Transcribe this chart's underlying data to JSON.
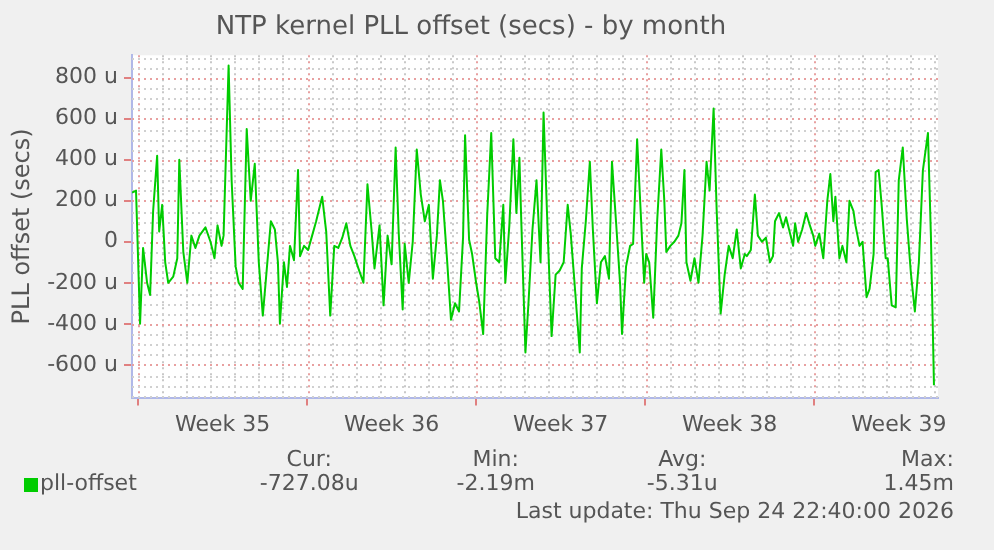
{
  "chart_data": {
    "type": "line",
    "title": "NTP kernel PLL offset (secs) - by month",
    "ylabel": "PLL offset (secs)",
    "xlim": [
      "2026-08-23T18:00",
      "2026-09-26T03:00"
    ],
    "xticks": [
      {
        "value": "2026-08-24T00:00",
        "label": null
      },
      {
        "value": "2026-08-27T12:00",
        "label": "Week 35"
      },
      {
        "value": "2026-08-31T00:00",
        "label": null
      },
      {
        "value": "2026-09-03T12:00",
        "label": "Week 36"
      },
      {
        "value": "2026-09-07T00:00",
        "label": null
      },
      {
        "value": "2026-09-10T12:00",
        "label": "Week 37"
      },
      {
        "value": "2026-09-14T00:00",
        "label": null
      },
      {
        "value": "2026-09-17T12:00",
        "label": "Week 38"
      },
      {
        "value": "2026-09-21T00:00",
        "label": null
      },
      {
        "value": "2026-09-24T12:00",
        "label": "Week 39"
      }
    ],
    "ylim": [
      -760,
      910
    ],
    "yticks": [
      {
        "value": -600,
        "label": "-600 u"
      },
      {
        "value": -400,
        "label": "-400 u"
      },
      {
        "value": -200,
        "label": "-200 u"
      },
      0,
      {
        "value": 200,
        "label": "200 u"
      },
      {
        "value": 400,
        "label": "400 u"
      },
      {
        "value": 600,
        "label": "600 u"
      },
      {
        "value": 800,
        "label": "800 u"
      }
    ],
    "grid": true,
    "legend": "bottom",
    "marker": "none",
    "line_style": "solid",
    "annotations": [
      "Cur:",
      "-727.08u",
      "Min:",
      "-2.19m",
      "Avg:",
      "-5.31u",
      "Max:",
      "1.45m",
      "Last update: Thu Sep 24 22:40:00 2026"
    ],
    "x": [
      "2026-08-23T18:00",
      "2026-08-23T22:00",
      "2026-08-24T02:00",
      "2026-08-24T05:00",
      "2026-08-24T09:00",
      "2026-08-24T12:00",
      "2026-08-24T15:00",
      "2026-08-24T19:00",
      "2026-08-24T21:00",
      "2026-08-25T00:00",
      "2026-08-25T03:00",
      "2026-08-25T06:00",
      "2026-08-25T11:00",
      "2026-08-25T15:00",
      "2026-08-25T17:00",
      "2026-08-25T21:00",
      "2026-08-26T01:00",
      "2026-08-26T05:00",
      "2026-08-26T09:00",
      "2026-08-26T13:00",
      "2026-08-26T19:00",
      "2026-08-27T00:00",
      "2026-08-27T04:00",
      "2026-08-27T07:00",
      "2026-08-27T11:00",
      "2026-08-27T13:00",
      "2026-08-27T18:00",
      "2026-08-27T21:00",
      "2026-08-28T01:00",
      "2026-08-28T04:00",
      "2026-08-28T08:00",
      "2026-08-28T12:00",
      "2026-08-28T16:00",
      "2026-08-28T20:00",
      "2026-08-29T00:00",
      "2026-08-29T04:00",
      "2026-08-29T08:00",
      "2026-08-29T12:00",
      "2026-08-29T16:00",
      "2026-08-29T19:00",
      "2026-08-29T21:00",
      "2026-08-30T01:00",
      "2026-08-30T04:00",
      "2026-08-30T07:00",
      "2026-08-30T11:00",
      "2026-08-30T15:00",
      "2026-08-30T17:00",
      "2026-08-30T21:00",
      "2026-08-31T01:00",
      "2026-08-31T05:00",
      "2026-08-31T09:00",
      "2026-08-31T15:00",
      "2026-08-31T19:00",
      "2026-08-31T23:00",
      "2026-09-01T03:00",
      "2026-09-01T07:00",
      "2026-09-01T11:00",
      "2026-09-01T15:00",
      "2026-09-01T19:00",
      "2026-09-01T23:00",
      "2026-09-02T03:00",
      "2026-09-02T08:00",
      "2026-09-02T12:00",
      "2026-09-02T16:00",
      "2026-09-02T19:00",
      "2026-09-03T00:00",
      "2026-09-03T04:00",
      "2026-09-03T08:00",
      "2026-09-03T12:00",
      "2026-09-03T16:00",
      "2026-09-03T19:00",
      "2026-09-03T23:00",
      "2026-09-04T01:00",
      "2026-09-04T05:00",
      "2026-09-04T09:00",
      "2026-09-04T13:00",
      "2026-09-04T17:00",
      "2026-09-04T21:00",
      "2026-09-05T01:00",
      "2026-09-05T05:00",
      "2026-09-05T09:00",
      "2026-09-05T12:00",
      "2026-09-05T15:00",
      "2026-09-05T19:00",
      "2026-09-05T23:00",
      "2026-09-06T03:00",
      "2026-09-06T07:00",
      "2026-09-06T11:00",
      "2026-09-06T13:00",
      "2026-09-06T17:00",
      "2026-09-06T20:00",
      "2026-09-07T00:00",
      "2026-09-07T03:00",
      "2026-09-07T07:00",
      "2026-09-07T11:00",
      "2026-09-07T15:00",
      "2026-09-07T19:00",
      "2026-09-07T23:00",
      "2026-09-08T03:00",
      "2026-09-08T05:00",
      "2026-09-08T09:00",
      "2026-09-08T13:00",
      "2026-09-08T16:00",
      "2026-09-08T19:00",
      "2026-09-08T21:00",
      "2026-09-09T01:00",
      "2026-09-09T04:00",
      "2026-09-09T08:00",
      "2026-09-09T12:00",
      "2026-09-09T16:00",
      "2026-09-09T19:00",
      "2026-09-09T23:00",
      "2026-09-10T03:00",
      "2026-09-10T07:00",
      "2026-09-10T11:00",
      "2026-09-10T15:00",
      "2026-09-10T19:00",
      "2026-09-10T22:00",
      "2026-09-11T01:00",
      "2026-09-11T07:00",
      "2026-09-11T09:00",
      "2026-09-11T13:00",
      "2026-09-11T17:00",
      "2026-09-11T20:00",
      "2026-09-12T00:00",
      "2026-09-12T04:00",
      "2026-09-12T08:00",
      "2026-09-12T12:00",
      "2026-09-12T15:00",
      "2026-09-12T19:00",
      "2026-09-12T23:00",
      "2026-09-13T01:00",
      "2026-09-13T05:00",
      "2026-09-13T09:00",
      "2026-09-13T12:00",
      "2026-09-13T16:00",
      "2026-09-13T20:00",
      "2026-09-13T23:00",
      "2026-09-14T01:00",
      "2026-09-14T04:00",
      "2026-09-14T08:00",
      "2026-09-14T12:00",
      "2026-09-14T16:00",
      "2026-09-14T19:00",
      "2026-09-14T21:00",
      "2026-09-15T01:00",
      "2026-09-15T05:00",
      "2026-09-15T09:00",
      "2026-09-15T12:00",
      "2026-09-15T15:00",
      "2026-09-15T17:00",
      "2026-09-15T21:00",
      "2026-09-16T01:00",
      "2026-09-16T05:00",
      "2026-09-16T09:00",
      "2026-09-16T13:00",
      "2026-09-16T16:00",
      "2026-09-16T20:00",
      "2026-09-16T23:00",
      "2026-09-17T03:00",
      "2026-09-17T07:00",
      "2026-09-17T11:00",
      "2026-09-17T15:00",
      "2026-09-17T19:00",
      "2026-09-17T23:00",
      "2026-09-18T03:00",
      "2026-09-18T05:00",
      "2026-09-18T09:00",
      "2026-09-18T13:00",
      "2026-09-18T16:00",
      "2026-09-18T20:00",
      "2026-09-19T00:00",
      "2026-09-19T04:00",
      "2026-09-19T07:00",
      "2026-09-19T09:00",
      "2026-09-19T13:00",
      "2026-09-19T17:00",
      "2026-09-19T20:00",
      "2026-09-19T23:00",
      "2026-09-20T03:00",
      "2026-09-20T05:00",
      "2026-09-20T08:00",
      "2026-09-20T12:00",
      "2026-09-20T16:00",
      "2026-09-20T19:00",
      "2026-09-20T23:00",
      "2026-09-21T01:00",
      "2026-09-21T05:00",
      "2026-09-21T09:00",
      "2026-09-21T13:00",
      "2026-09-21T16:00",
      "2026-09-21T19:00",
      "2026-09-21T21:00",
      "2026-09-22T01:00",
      "2026-09-22T04:00",
      "2026-09-22T08:00",
      "2026-09-22T11:00",
      "2026-09-22T15:00",
      "2026-09-22T17:00",
      "2026-09-22T21:00",
      "2026-09-23T00:00",
      "2026-09-23T04:00",
      "2026-09-23T07:00",
      "2026-09-23T11:00",
      "2026-09-23T13:00",
      "2026-09-23T16:00",
      "2026-09-23T19:00",
      "2026-09-23T23:00",
      "2026-09-24T01:00",
      "2026-09-24T05:00",
      "2026-09-24T09:00",
      "2026-09-24T12:00",
      "2026-09-24T16:00",
      "2026-09-24T20:00",
      "2026-09-25T00:00",
      "2026-09-25T04:00",
      "2026-09-25T08:00",
      "2026-09-25T12:00",
      "2026-09-25T17:00",
      "2026-09-25T20:00",
      "2026-09-25T23:00"
    ],
    "series": [
      {
        "name": "pll-offset",
        "color": "#00cc00",
        "values": [
          240,
          250,
          -400,
          -30,
          -200,
          -260,
          150,
          420,
          50,
          180,
          -100,
          -200,
          -170,
          -80,
          400,
          -50,
          -200,
          30,
          -30,
          30,
          70,
          0,
          -80,
          80,
          -20,
          30,
          860,
          300,
          -120,
          -200,
          -230,
          550,
          200,
          380,
          -100,
          -360,
          -130,
          100,
          60,
          -100,
          -400,
          -100,
          -220,
          -20,
          -90,
          350,
          -70,
          -20,
          -40,
          30,
          100,
          220,
          50,
          -360,
          -20,
          -30,
          20,
          90,
          -20,
          -70,
          -130,
          -200,
          280,
          60,
          -130,
          80,
          -310,
          30,
          -110,
          460,
          50,
          -330,
          -10,
          -200,
          0,
          450,
          230,
          100,
          180,
          -180,
          30,
          300,
          200,
          -80,
          -380,
          -300,
          -340,
          20,
          520,
          10,
          -60,
          -200,
          -290,
          -450,
          130,
          530,
          -80,
          -100,
          180,
          -200,
          80,
          500,
          140,
          410,
          80,
          -540,
          -300,
          60,
          300,
          -100,
          630,
          60,
          -460,
          -160,
          -140,
          -100,
          180,
          40,
          -150,
          -540,
          -130,
          100,
          390,
          60,
          -300,
          -100,
          -70,
          -180,
          390,
          100,
          -200,
          -450,
          -120,
          -20,
          -10,
          500,
          100,
          -200,
          -60,
          -100,
          -370,
          110,
          450,
          200,
          -50,
          -20,
          0,
          30,
          90,
          350,
          -100,
          -190,
          -80,
          -200,
          30,
          390,
          250,
          650,
          160,
          -350,
          -160,
          -20,
          -80,
          60,
          -130,
          -60,
          -70,
          -40,
          230,
          30,
          0,
          20,
          -100,
          -70,
          100,
          140,
          70,
          120,
          60,
          -20,
          90,
          0,
          60,
          140,
          90,
          30,
          -20,
          40,
          -80,
          200,
          330,
          100,
          220,
          -80,
          -20,
          -100,
          200,
          150,
          80,
          -20,
          0,
          -270,
          -230,
          -60,
          340,
          350,
          180,
          -80,
          -80,
          -310,
          -320,
          300,
          460,
          110,
          -150,
          -340,
          -100,
          350,
          530,
          20,
          -700
        ]
      }
    ]
  }
}
